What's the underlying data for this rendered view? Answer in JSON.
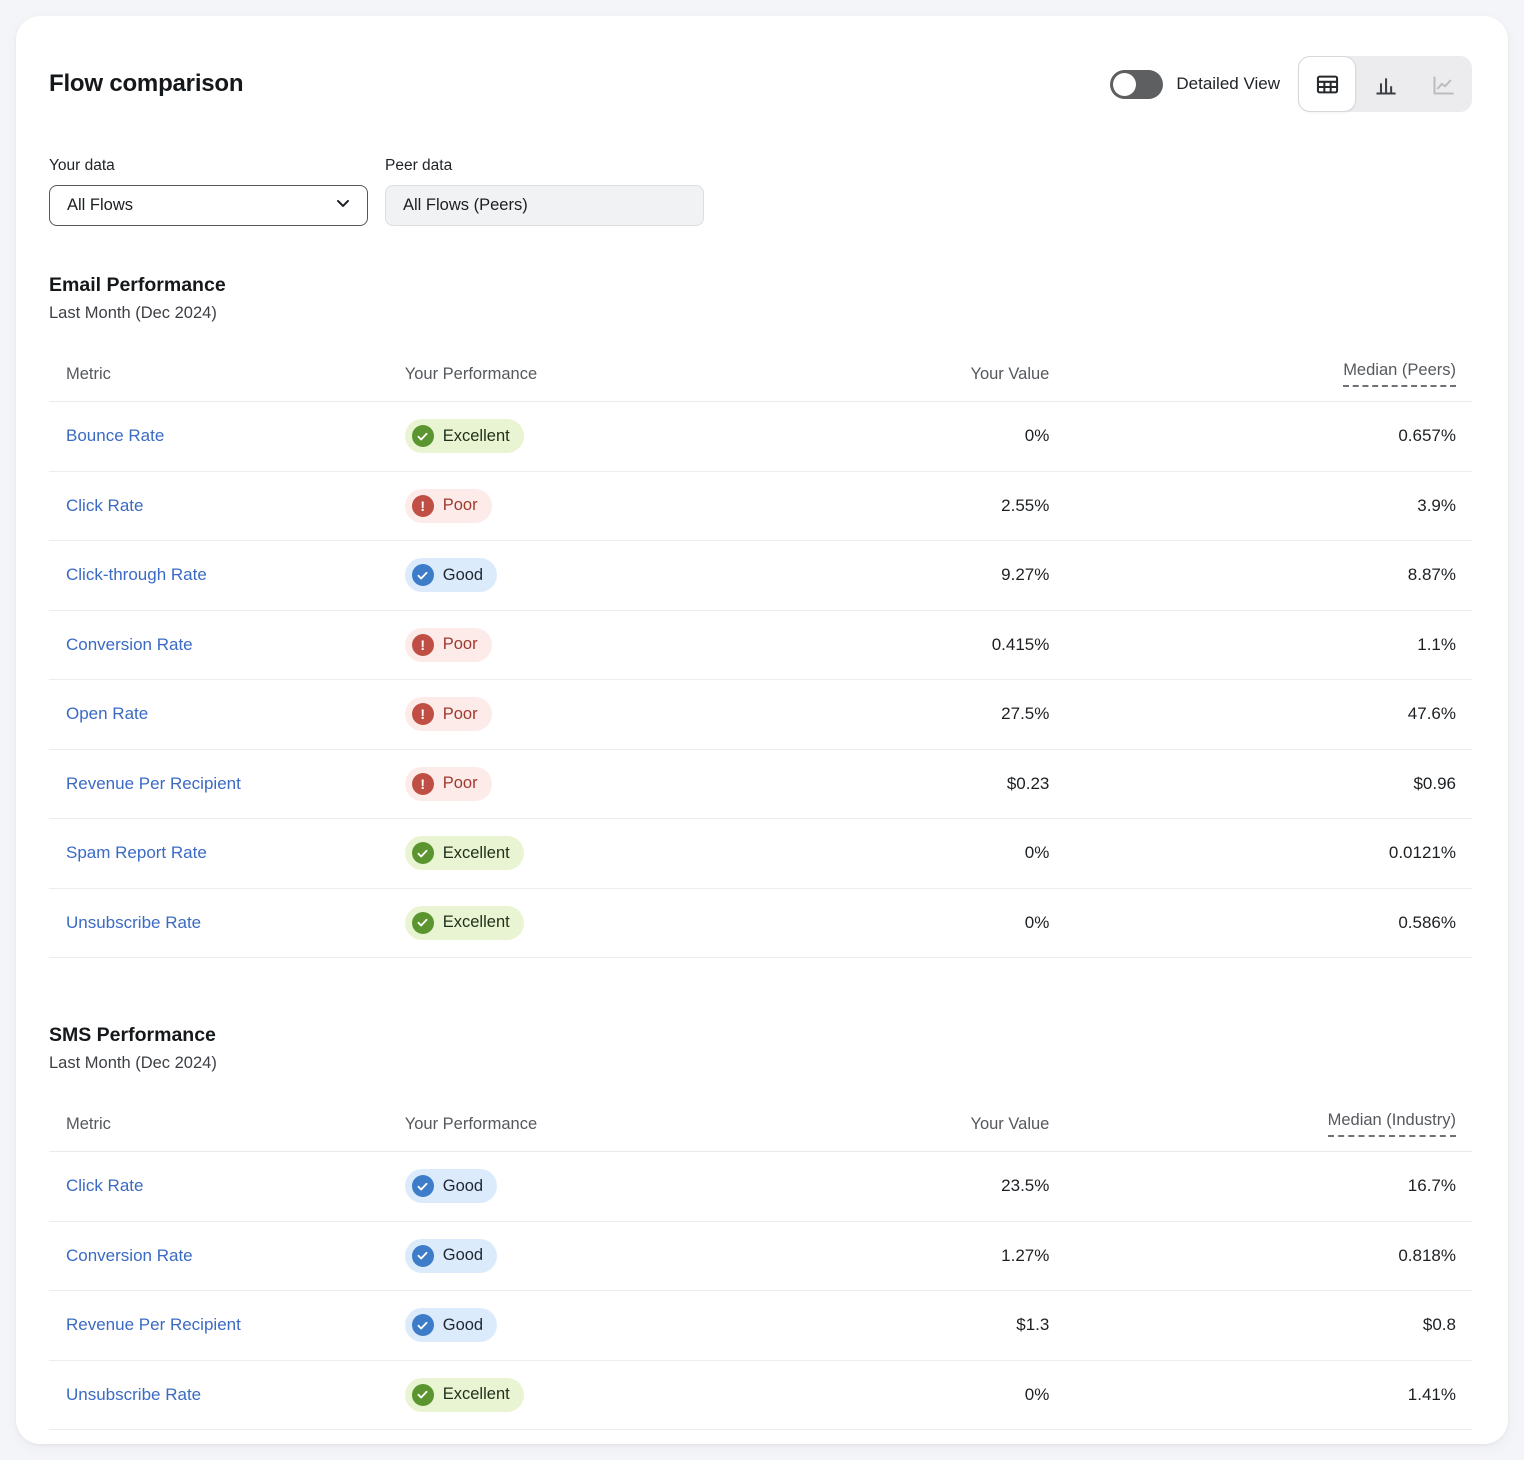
{
  "header": {
    "title": "Flow comparison",
    "detailed_view_label": "Detailed View",
    "detailed_view_state": "off",
    "view_switcher": {
      "selected": "table",
      "options": [
        "table",
        "bar-chart",
        "line-chart"
      ],
      "disabled": [
        "line-chart"
      ]
    }
  },
  "filters": {
    "your_data": {
      "label": "Your data",
      "value": "All Flows"
    },
    "peer_data": {
      "label": "Peer data",
      "value": "All Flows (Peers)"
    }
  },
  "ratings": {
    "Excellent": {
      "badge_bg": "#e9f4d2",
      "icon_bg": "#5b9530",
      "text_color": "#22301a",
      "icon": "check-icon"
    },
    "Good": {
      "badge_bg": "#dcebfb",
      "icon_bg": "#3d7cc9",
      "text_color": "#1f2733",
      "icon": "check-icon"
    },
    "Poor": {
      "badge_bg": "#fcebe8",
      "icon_bg": "#bf4f44",
      "text_color": "#a03a30",
      "icon": "exclamation-icon"
    }
  },
  "sections": [
    {
      "id": "email-performance",
      "title": "Email Performance",
      "subtitle": "Last Month (Dec 2024)",
      "columns": {
        "metric": "Metric",
        "performance": "Your Performance",
        "value": "Your Value",
        "median": "Median (Peers)"
      },
      "rows": [
        {
          "metric": "Bounce Rate",
          "rating": "Excellent",
          "value": "0%",
          "median": "0.657%"
        },
        {
          "metric": "Click Rate",
          "rating": "Poor",
          "value": "2.55%",
          "median": "3.9%"
        },
        {
          "metric": "Click-through Rate",
          "rating": "Good",
          "value": "9.27%",
          "median": "8.87%"
        },
        {
          "metric": "Conversion Rate",
          "rating": "Poor",
          "value": "0.415%",
          "median": "1.1%"
        },
        {
          "metric": "Open Rate",
          "rating": "Poor",
          "value": "27.5%",
          "median": "47.6%"
        },
        {
          "metric": "Revenue Per Recipient",
          "rating": "Poor",
          "value": "$0.23",
          "median": "$0.96"
        },
        {
          "metric": "Spam Report Rate",
          "rating": "Excellent",
          "value": "0%",
          "median": "0.0121%"
        },
        {
          "metric": "Unsubscribe Rate",
          "rating": "Excellent",
          "value": "0%",
          "median": "0.586%"
        }
      ]
    },
    {
      "id": "sms-performance",
      "title": "SMS Performance",
      "subtitle": "Last Month (Dec 2024)",
      "columns": {
        "metric": "Metric",
        "performance": "Your Performance",
        "value": "Your Value",
        "median": "Median (Industry)"
      },
      "rows": [
        {
          "metric": "Click Rate",
          "rating": "Good",
          "value": "23.5%",
          "median": "16.7%"
        },
        {
          "metric": "Conversion Rate",
          "rating": "Good",
          "value": "1.27%",
          "median": "0.818%"
        },
        {
          "metric": "Revenue Per Recipient",
          "rating": "Good",
          "value": "$1.3",
          "median": "$0.8"
        },
        {
          "metric": "Unsubscribe Rate",
          "rating": "Excellent",
          "value": "0%",
          "median": "1.41%"
        }
      ]
    }
  ]
}
